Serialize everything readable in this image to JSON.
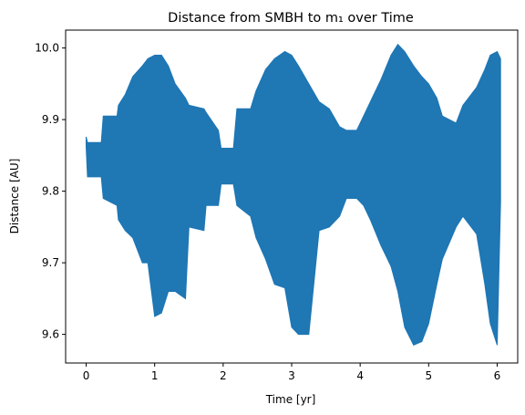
{
  "chart_data": {
    "type": "line",
    "title": "Distance from SMBH to m₁ over Time",
    "xlabel": "Time [yr]",
    "ylabel": "Distance [AU]",
    "xlim": [
      -0.3,
      6.3
    ],
    "ylim": [
      9.56,
      10.025
    ],
    "xticks": [
      0,
      1,
      2,
      3,
      4,
      5,
      6
    ],
    "yticks": [
      9.6,
      9.7,
      9.8,
      9.9,
      10.0
    ],
    "xtick_labels": [
      "0",
      "1",
      "2",
      "3",
      "4",
      "5",
      "6"
    ],
    "ytick_labels": [
      "9.6",
      "9.7",
      "9.8",
      "9.9",
      "10.0"
    ],
    "grid": false,
    "legend": "none",
    "series": [
      {
        "color": "#1f77b4",
        "envelope": {
          "x": [
            0.0,
            0.02,
            0.22,
            0.25,
            0.45,
            0.47,
            0.57,
            0.68,
            0.82,
            0.9,
            1.0,
            1.1,
            1.2,
            1.3,
            1.45,
            1.5,
            1.72,
            1.75,
            1.93,
            1.97,
            2.15,
            2.2,
            2.4,
            2.48,
            2.62,
            2.75,
            2.9,
            3.0,
            3.1,
            3.25,
            3.4,
            3.55,
            3.7,
            3.8,
            3.95,
            4.05,
            4.15,
            4.3,
            4.45,
            4.55,
            4.65,
            4.78,
            4.9,
            5.0,
            5.12,
            5.2,
            5.4,
            5.5,
            5.7,
            5.82,
            5.9,
            6.0,
            6.05
          ],
          "upper": [
            9.876,
            9.868,
            9.868,
            9.905,
            9.905,
            9.92,
            9.935,
            9.96,
            9.975,
            9.985,
            9.99,
            9.99,
            9.975,
            9.95,
            9.93,
            9.92,
            9.915,
            9.91,
            9.885,
            9.86,
            9.86,
            9.915,
            9.915,
            9.94,
            9.97,
            9.985,
            9.995,
            9.99,
            9.975,
            9.95,
            9.925,
            9.915,
            9.89,
            9.885,
            9.885,
            9.905,
            9.925,
            9.955,
            9.99,
            10.005,
            9.995,
            9.975,
            9.96,
            9.95,
            9.93,
            9.905,
            9.895,
            9.92,
            9.945,
            9.97,
            9.99,
            9.995,
            9.985
          ],
          "lower": [
            9.862,
            9.82,
            9.82,
            9.79,
            9.78,
            9.76,
            9.745,
            9.735,
            9.7,
            9.7,
            9.625,
            9.63,
            9.66,
            9.66,
            9.65,
            9.75,
            9.745,
            9.78,
            9.78,
            9.81,
            9.81,
            9.78,
            9.765,
            9.735,
            9.705,
            9.67,
            9.665,
            9.61,
            9.6,
            9.6,
            9.745,
            9.75,
            9.765,
            9.79,
            9.79,
            9.78,
            9.76,
            9.725,
            9.695,
            9.66,
            9.61,
            9.585,
            9.59,
            9.615,
            9.67,
            9.705,
            9.75,
            9.765,
            9.74,
            9.67,
            9.615,
            9.585,
            9.785
          ]
        }
      }
    ]
  }
}
